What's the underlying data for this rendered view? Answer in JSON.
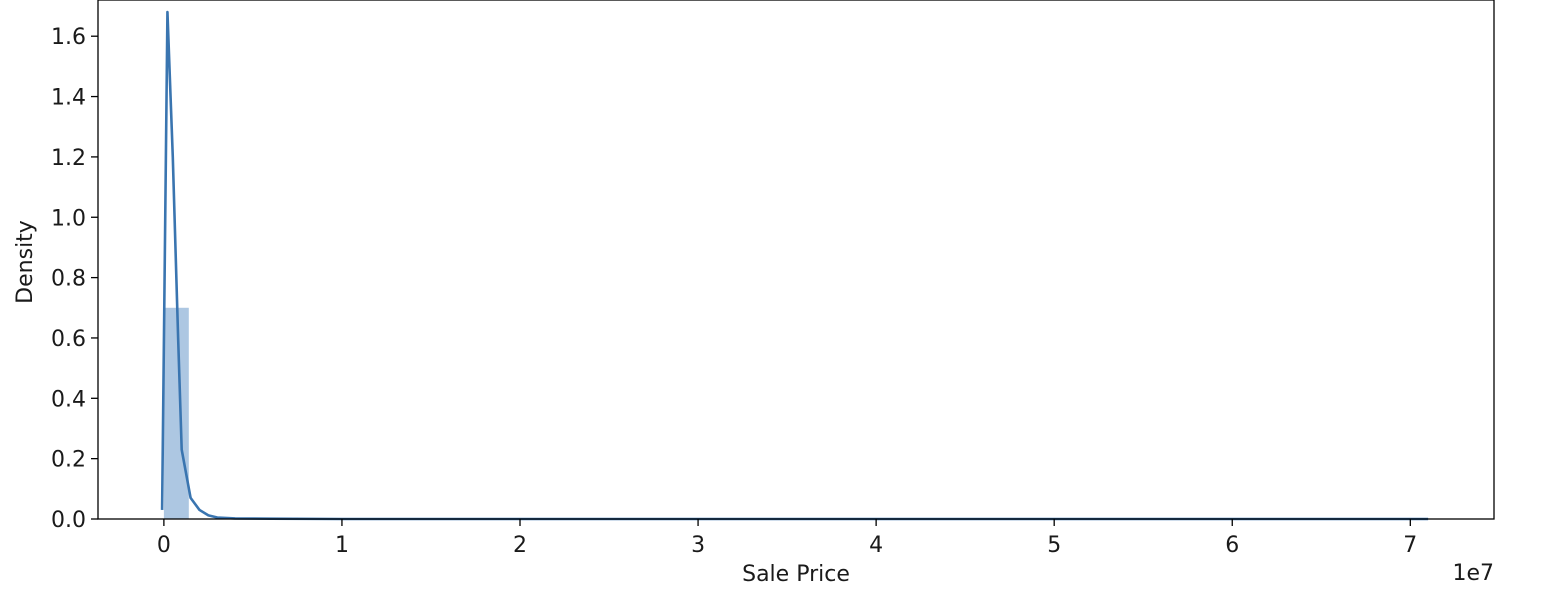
{
  "chart_data": {
    "type": "histogram+kde",
    "title": "",
    "xlabel": "Sale Price",
    "ylabel": "Density",
    "x_offset_label": "1e7",
    "x_scale": 10000000,
    "xlim": [
      -0.37,
      7.47
    ],
    "ylim": [
      0.0,
      1.72
    ],
    "xticks": [
      0,
      1,
      2,
      3,
      4,
      5,
      6,
      7
    ],
    "xtick_labels": [
      "0",
      "1",
      "2",
      "3",
      "4",
      "5",
      "6",
      "7"
    ],
    "yticks": [
      0.0,
      0.2,
      0.4,
      0.6,
      0.8,
      1.0,
      1.2,
      1.4,
      1.6
    ],
    "ytick_labels": [
      "0.0",
      "0.2",
      "0.4",
      "0.6",
      "0.8",
      "1.0",
      "1.2",
      "1.4",
      "1.6"
    ],
    "grid": false,
    "histogram": {
      "color": "#a9c4e0",
      "bins": [
        {
          "x0": 0.0,
          "x1": 0.14,
          "density": 0.7
        },
        {
          "x0": 0.14,
          "x1": 7.1,
          "density": 0.0
        }
      ]
    },
    "kde": {
      "color": "#3a75b0",
      "x": [
        -0.01,
        0.02,
        0.05,
        0.08,
        0.1,
        0.15,
        0.2,
        0.25,
        0.3,
        0.4,
        0.6,
        1.0,
        2.0,
        4.0,
        7.1
      ],
      "y": [
        0.03,
        1.68,
        1.2,
        0.6,
        0.23,
        0.07,
        0.03,
        0.012,
        0.005,
        0.002,
        0.001,
        0.0,
        0.0,
        0.0,
        0.0
      ]
    }
  }
}
